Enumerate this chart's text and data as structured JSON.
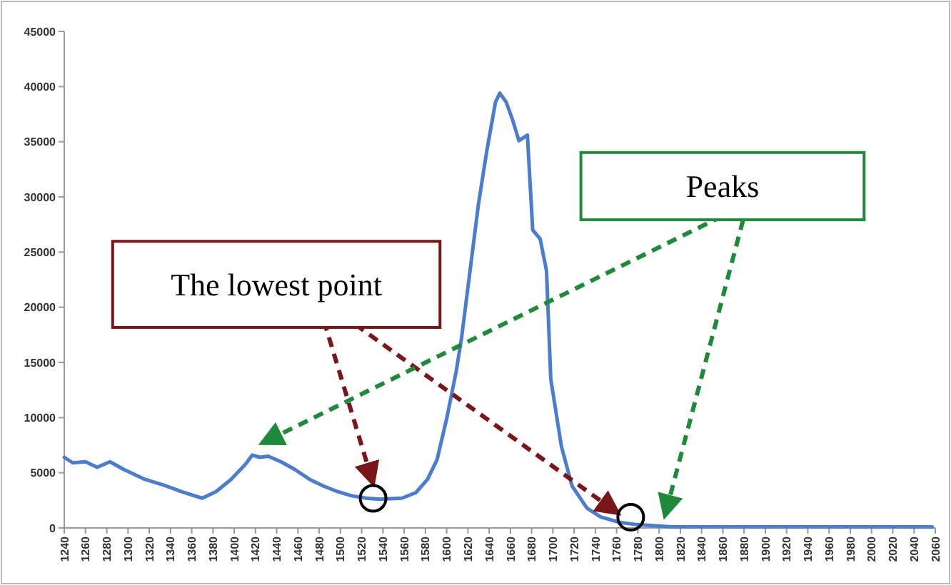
{
  "chart_data": {
    "type": "line",
    "annotations": [
      "The lowest point",
      "Peaks"
    ],
    "x": [
      1240,
      1248,
      1260,
      1271,
      1283,
      1296,
      1316,
      1336,
      1350,
      1363,
      1370,
      1383,
      1397,
      1410,
      1417,
      1424,
      1432,
      1444,
      1457,
      1471,
      1484,
      1497,
      1511,
      1524,
      1537,
      1558,
      1571,
      1582,
      1591,
      1600,
      1609,
      1614,
      1622,
      1630,
      1638,
      1646,
      1650,
      1656,
      1662,
      1668,
      1676,
      1681,
      1688,
      1694,
      1698,
      1708,
      1718,
      1732,
      1745,
      1763,
      1779,
      1812,
      1879,
      1986,
      2057
    ],
    "series": [
      {
        "color": "#4a7dd0",
        "values": [
          6400,
          5900,
          6000,
          5500,
          6000,
          5300,
          4400,
          3800,
          3300,
          2900,
          2700,
          3300,
          4400,
          5700,
          6600,
          6400,
          6500,
          6000,
          5300,
          4400,
          3800,
          3300,
          2900,
          2700,
          2600,
          2700,
          3200,
          4400,
          6200,
          9900,
          14200,
          17200,
          23300,
          29400,
          34300,
          38600,
          39400,
          38600,
          37000,
          35100,
          35600,
          27000,
          26200,
          23300,
          13500,
          7400,
          3800,
          1800,
          1000,
          500,
          300,
          100,
          100,
          100,
          100
        ]
      }
    ],
    "xlim": [
      1240,
      2060
    ],
    "xticks": [
      1240,
      1260,
      1280,
      1300,
      1320,
      1340,
      1360,
      1380,
      1400,
      1420,
      1440,
      1460,
      1480,
      1500,
      1520,
      1540,
      1560,
      1580,
      1600,
      1620,
      1640,
      1660,
      1680,
      1700,
      1720,
      1740,
      1760,
      1780,
      1800,
      1820,
      1840,
      1860,
      1880,
      1900,
      1920,
      1940,
      1960,
      1980,
      2000,
      2020,
      2040,
      2060
    ],
    "ylim": [
      0,
      45000
    ],
    "yticks": [
      0,
      5000,
      10000,
      15000,
      20000,
      25000,
      30000,
      35000,
      40000,
      45000
    ],
    "grid": false,
    "marker": "none",
    "line_style": "solid"
  }
}
